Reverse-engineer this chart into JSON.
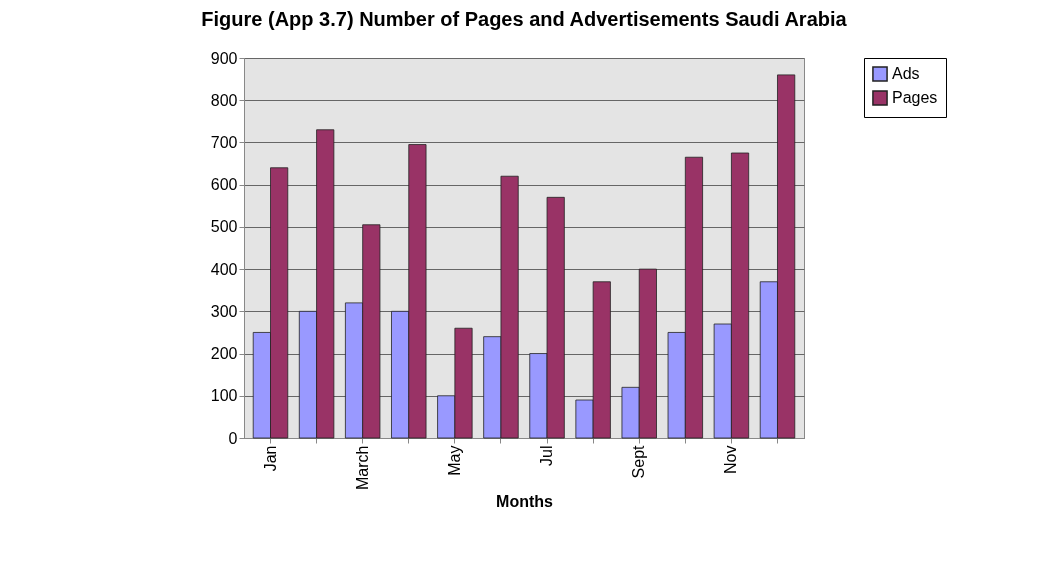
{
  "chart_data": {
    "type": "bar",
    "title": "Figure (App 3.7) Number of Pages and Advertisements Saudi Arabia",
    "xlabel": "Months",
    "categories": [
      "Jan",
      null,
      "March",
      null,
      "May",
      null,
      "Jul",
      null,
      "Sept",
      null,
      "Nov",
      null
    ],
    "series": [
      {
        "name": "Ads",
        "color": "#9999ff",
        "values": [
          250,
          300,
          320,
          300,
          100,
          240,
          200,
          90,
          120,
          250,
          270,
          370
        ]
      },
      {
        "name": "Pages",
        "color": "#993366",
        "values": [
          640,
          730,
          505,
          695,
          260,
          620,
          570,
          370,
          400,
          665,
          675,
          860
        ]
      }
    ],
    "ylim": [
      0,
      900
    ],
    "yticks": [
      0,
      100,
      200,
      300,
      400,
      500,
      600,
      700,
      800,
      900
    ],
    "grid": "y",
    "legend": "right"
  }
}
